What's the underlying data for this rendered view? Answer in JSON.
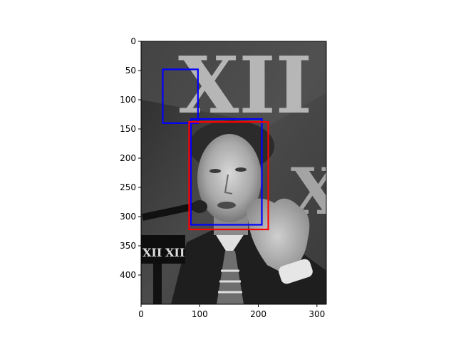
{
  "image": {
    "width": 316,
    "height": 450,
    "subject": "grayscale press-conference photo of a man speaking into microphones"
  },
  "backdrop_text": {
    "top": "XII",
    "mic_badge_left": "XII",
    "mic_badge_right": "XII",
    "side": "X"
  },
  "axes": {
    "xlim": [
      0,
      316
    ],
    "ylim": [
      450,
      0
    ],
    "x_ticks": [
      0,
      100,
      200,
      300
    ],
    "y_ticks": [
      0,
      50,
      100,
      150,
      200,
      250,
      300,
      350,
      400
    ]
  },
  "boxes": [
    {
      "name": "detection-small",
      "color": "#0000ff",
      "x0": 37,
      "y0": 48,
      "x1": 97,
      "y1": 140
    },
    {
      "name": "detection-face",
      "color": "#0000ff",
      "x0": 85,
      "y0": 133,
      "x1": 206,
      "y1": 314
    },
    {
      "name": "ground-truth",
      "color": "#ff0000",
      "x0": 82,
      "y0": 138,
      "x1": 217,
      "y1": 322
    }
  ],
  "colors": {
    "frame": "#000000",
    "blue": "#0000ff",
    "red": "#ff0000"
  }
}
